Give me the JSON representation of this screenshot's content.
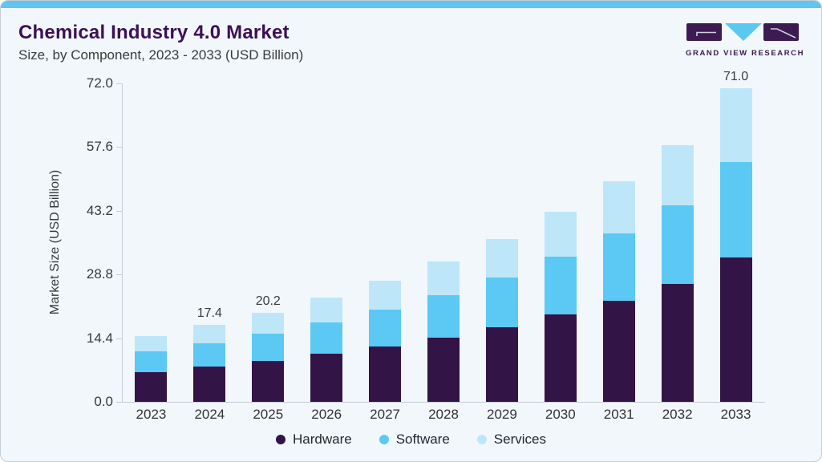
{
  "header": {
    "title": "Chemical Industry 4.0 Market",
    "subtitle": "Size, by Component, 2023 - 2033 (USD Billion)"
  },
  "logo": {
    "brand": "GRAND VIEW RESEARCH",
    "purple": "#3c1a52",
    "cyan": "#5bc8f0"
  },
  "theme": {
    "card_background": "#f1f7fb",
    "top_strip_color": "#5ec6ef",
    "axis_line_color": "#c6ccd2",
    "title_color": "#3c1056",
    "text_color": "#3a3a3a"
  },
  "chart_data": {
    "type": "bar",
    "stacked": true,
    "title": "Chemical Industry 4.0 Market Size, by Component, 2023 - 2033 (USD Billion)",
    "categories": [
      "2023",
      "2024",
      "2025",
      "2026",
      "2027",
      "2028",
      "2029",
      "2030",
      "2031",
      "2032",
      "2033"
    ],
    "series": [
      {
        "name": "Hardware",
        "color": "#321447",
        "values": [
          6.8,
          8.0,
          9.3,
          10.8,
          12.5,
          14.5,
          16.9,
          19.7,
          22.9,
          26.7,
          32.7
        ]
      },
      {
        "name": "Software",
        "color": "#5bc9f3",
        "values": [
          4.6,
          5.3,
          6.1,
          7.2,
          8.3,
          9.7,
          11.3,
          13.1,
          15.2,
          17.7,
          21.6
        ]
      },
      {
        "name": "Services",
        "color": "#bde7f9",
        "values": [
          3.5,
          4.1,
          4.8,
          5.5,
          6.5,
          7.5,
          8.7,
          10.1,
          11.8,
          13.7,
          16.7
        ]
      }
    ],
    "totals": [
      14.9,
      17.4,
      20.2,
      23.5,
      27.3,
      31.7,
      36.9,
      42.9,
      49.9,
      58.1,
      71.0
    ],
    "bar_labels": [
      "",
      "17.4",
      "20.2",
      "",
      "",
      "",
      "",
      "",
      "",
      "",
      "71.0"
    ],
    "xlabel": "",
    "ylabel": "Market Size (USD Billion)",
    "yticks": [
      72.0,
      57.6,
      43.2,
      28.8,
      14.4,
      0.0
    ],
    "ylim": [
      0,
      72
    ],
    "grid": false,
    "legend_position": "bottom"
  }
}
